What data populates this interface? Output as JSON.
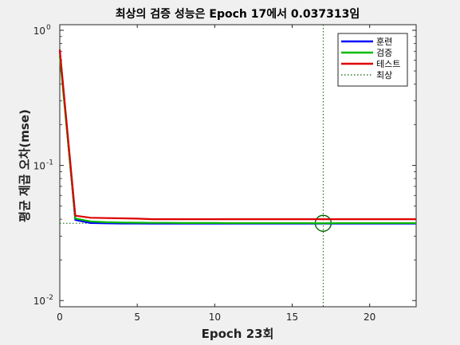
{
  "chart_data": {
    "type": "line",
    "title": "최상의 검증 성능은 Epoch 17에서 0.037313임",
    "xlabel": "Epoch 23회",
    "ylabel": "평균 제곱 오차(mse)",
    "xlim": [
      0,
      23
    ],
    "ylim": [
      0.009,
      1.1
    ],
    "yscale": "log",
    "xticks": [
      0,
      5,
      10,
      15,
      20
    ],
    "yticks": [
      {
        "value": 1,
        "base": "10",
        "exp": "0"
      },
      {
        "value": 0.1,
        "base": "10",
        "exp": "-1"
      },
      {
        "value": 0.01,
        "base": "10",
        "exp": "-2"
      }
    ],
    "x": [
      0,
      1,
      2,
      3,
      4,
      5,
      6,
      7,
      8,
      9,
      10,
      11,
      12,
      13,
      14,
      15,
      16,
      17,
      18,
      19,
      20,
      21,
      22,
      23
    ],
    "series": [
      {
        "name": "훈련",
        "color": "#0000ff",
        "values": [
          0.7,
          0.0395,
          0.0375,
          0.0373,
          0.0372,
          0.0372,
          0.0371,
          0.0371,
          0.0371,
          0.0371,
          0.0371,
          0.0371,
          0.0371,
          0.0371,
          0.0371,
          0.0371,
          0.0371,
          0.0371,
          0.0371,
          0.0371,
          0.0371,
          0.0371,
          0.0371,
          0.0371
        ]
      },
      {
        "name": "검증",
        "color": "#00bb00",
        "values": [
          0.65,
          0.0405,
          0.0385,
          0.038,
          0.0378,
          0.0377,
          0.0376,
          0.0376,
          0.0375,
          0.0375,
          0.0375,
          0.0374,
          0.0374,
          0.0374,
          0.0374,
          0.0374,
          0.0374,
          0.037313,
          0.0374,
          0.0374,
          0.0374,
          0.0374,
          0.0374,
          0.0374
        ]
      },
      {
        "name": "테스트",
        "color": "#dd0000",
        "values": [
          0.72,
          0.0425,
          0.041,
          0.0408,
          0.0406,
          0.0404,
          0.04,
          0.04,
          0.04,
          0.04,
          0.04,
          0.04,
          0.04,
          0.04,
          0.04,
          0.04,
          0.04,
          0.04,
          0.04,
          0.04,
          0.04,
          0.04,
          0.04,
          0.04
        ]
      }
    ],
    "best": {
      "name": "최상",
      "epoch": 17,
      "value": 0.037313,
      "color": "#006600"
    },
    "legend_placement": "top-right",
    "grid": false
  }
}
